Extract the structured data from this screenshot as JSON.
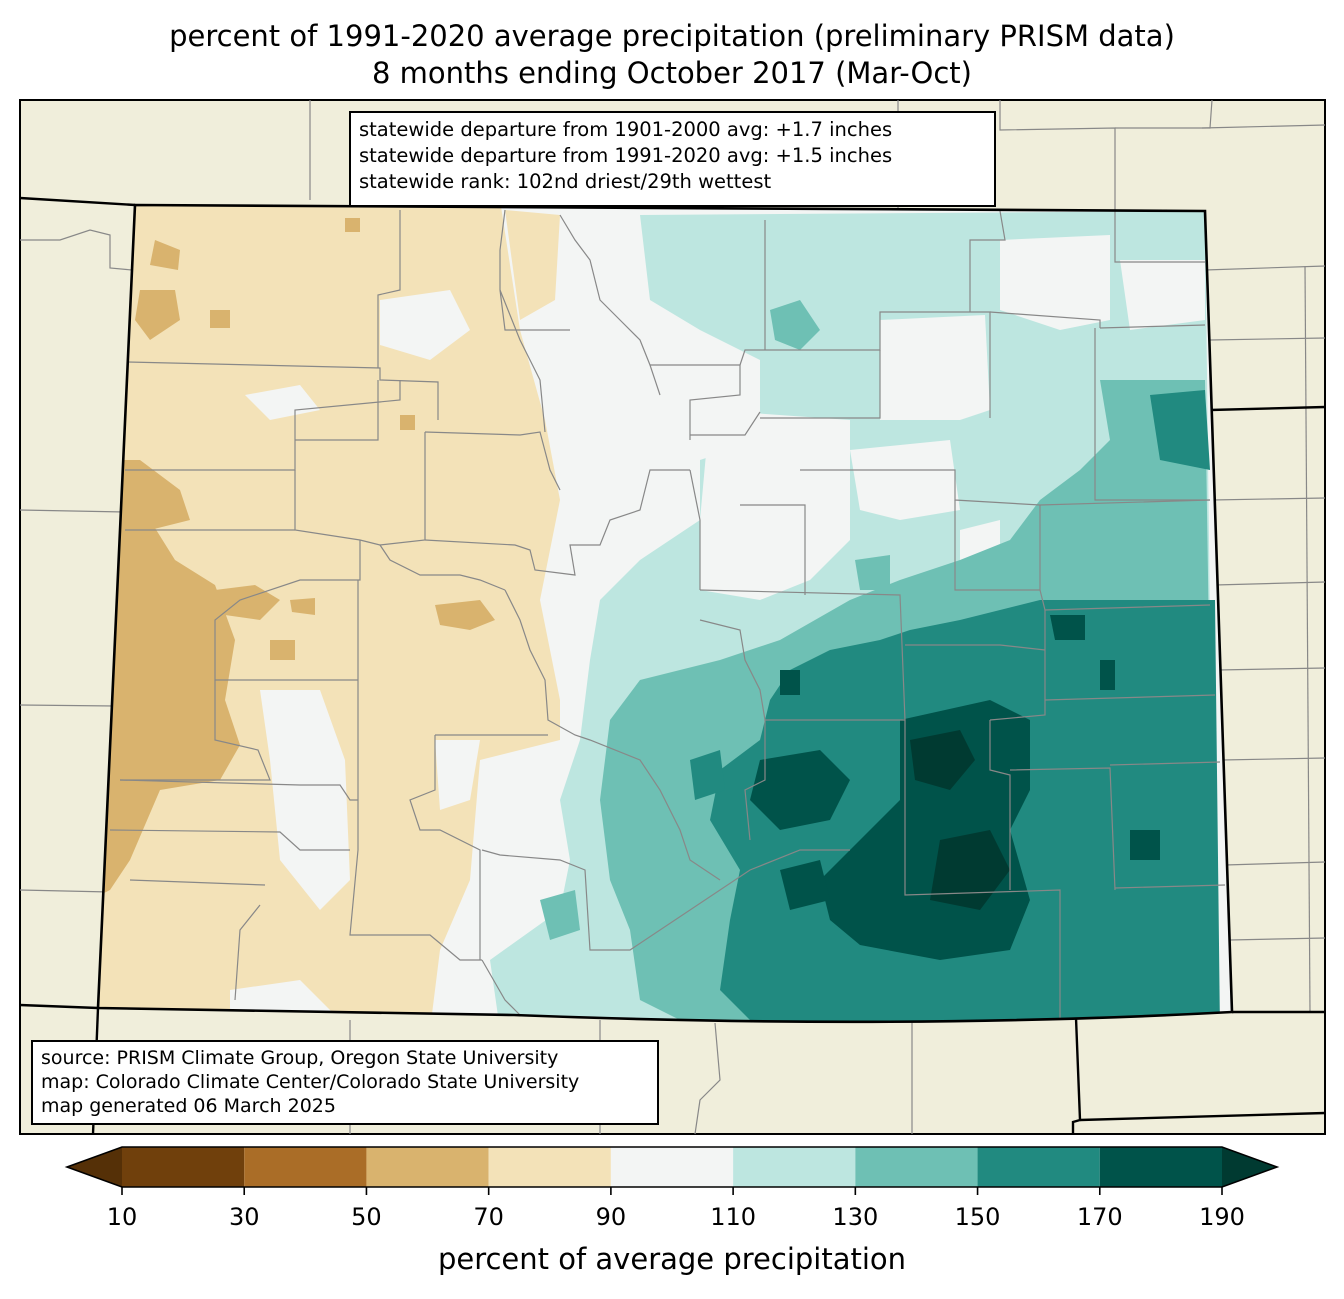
{
  "title_line1": "percent of 1991-2020 average precipitation (preliminary PRISM data)",
  "title_line2": "8 months ending October 2017 (Mar-Oct)",
  "stats": [
    "statewide departure from 1901-2000 avg: +1.7 inches",
    "statewide departure from 1991-2020 avg: +1.5 inches",
    "statewide rank: 102nd driest/29th wettest"
  ],
  "source": [
    "source: PRISM Climate Group, Oregon State University",
    "map: Colorado Climate Center/Colorado State University",
    "map generated 06 March 2025"
  ],
  "colorbar": {
    "label": "percent of average precipitation",
    "ticks": [
      "10",
      "30",
      "50",
      "70",
      "90",
      "110",
      "130",
      "150",
      "170",
      "190"
    ],
    "bins": [
      {
        "min": 10,
        "max": 30,
        "color": "#70400c"
      },
      {
        "min": 30,
        "max": 50,
        "color": "#aa6d27"
      },
      {
        "min": 50,
        "max": 70,
        "color": "#d9b36e"
      },
      {
        "min": 70,
        "max": 90,
        "color": "#f3e2b8"
      },
      {
        "min": 90,
        "max": 110,
        "color": "#f3f5f4"
      },
      {
        "min": 110,
        "max": 130,
        "color": "#bde6e0"
      },
      {
        "min": 130,
        "max": 150,
        "color": "#6ec0b4"
      },
      {
        "min": 150,
        "max": 170,
        "color": "#218a80"
      },
      {
        "min": 170,
        "max": 190,
        "color": "#00534a"
      }
    ],
    "under_color": "#553007",
    "over_color": "#003a31"
  },
  "colors": {
    "background_land": "#f0eedb",
    "county_lines": "#888888",
    "state_lines": "#000000"
  }
}
